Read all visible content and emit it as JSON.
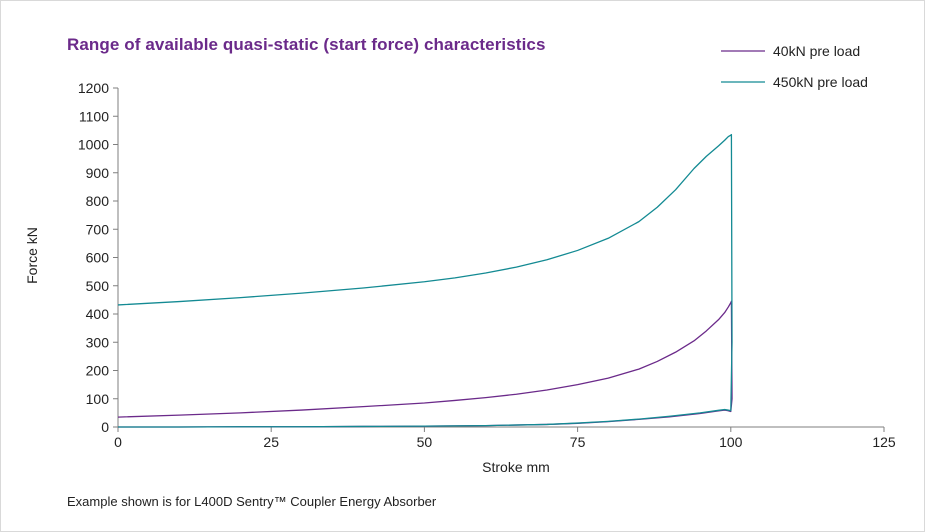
{
  "chart_data": {
    "type": "line",
    "title": "Range of available quasi-static (start force) characteristics",
    "xlabel": "Stroke mm",
    "ylabel": "Force kN",
    "xlim": [
      0,
      125
    ],
    "ylim": [
      0,
      1200
    ],
    "x_ticks": [
      "0",
      "25",
      "50",
      "75",
      "100",
      "125"
    ],
    "y_ticks": [
      "0",
      "100",
      "200",
      "300",
      "400",
      "500",
      "600",
      "700",
      "800",
      "900",
      "1000",
      "1100",
      "1200"
    ],
    "grid": false,
    "legend_position": "top-right",
    "series": [
      {
        "name": "40kN pre load",
        "color": "#6b2a8a",
        "x": [
          0,
          10,
          20,
          30,
          40,
          50,
          55,
          60,
          65,
          70,
          75,
          80,
          85,
          88,
          91,
          94,
          96,
          98,
          99,
          99.6,
          100,
          100.1,
          100.2,
          100,
          99.5,
          99,
          98,
          95,
          90,
          85,
          80,
          75,
          70,
          60,
          50,
          40,
          30,
          20,
          10,
          0
        ],
        "y": [
          35,
          42,
          50,
          60,
          72,
          85,
          94,
          104,
          116,
          131,
          150,
          173,
          205,
          232,
          265,
          305,
          340,
          380,
          405,
          425,
          440,
          445,
          100,
          55,
          58,
          60,
          57,
          48,
          36,
          27,
          19,
          13,
          9,
          5,
          3,
          2,
          1,
          1,
          0,
          0
        ]
      },
      {
        "name": "450kN pre load",
        "color": "#138a93",
        "x": [
          0,
          10,
          20,
          30,
          40,
          50,
          55,
          60,
          65,
          70,
          75,
          80,
          85,
          88,
          91,
          94,
          96,
          98,
          99,
          99.6,
          100,
          100.1,
          100.2,
          100,
          99.5,
          99,
          98,
          95,
          90,
          85,
          80,
          75,
          70,
          60,
          50,
          40,
          30,
          20,
          10,
          0
        ],
        "y": [
          432,
          444,
          458,
          474,
          492,
          514,
          528,
          545,
          566,
          592,
          625,
          668,
          727,
          778,
          840,
          915,
          958,
          995,
          1015,
          1028,
          1033,
          1035,
          300,
          58,
          60,
          62,
          59,
          50,
          38,
          28,
          20,
          14,
          9,
          5,
          3,
          2,
          1,
          1,
          0,
          0
        ]
      }
    ],
    "annotations": []
  },
  "footnote": "Example shown is for L400D Sentry™ Coupler Energy Absorber"
}
